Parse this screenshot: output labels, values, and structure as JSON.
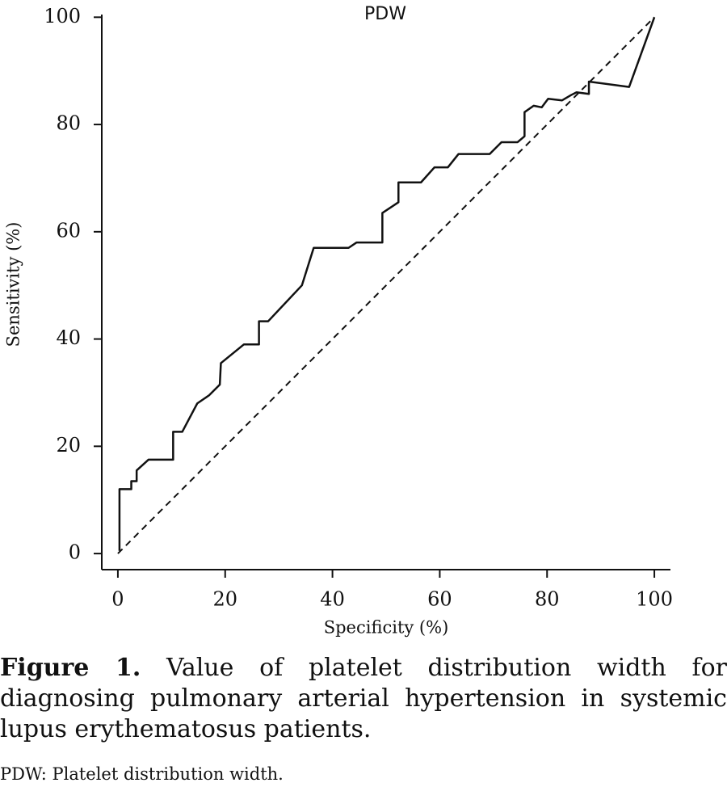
{
  "chart_data": {
    "type": "line",
    "title": "PDW",
    "x_label": "Specificity (%)",
    "y_label": "Sensitivity (%)",
    "x": [
      0.3,
      0.3,
      2.5,
      2.5,
      3.5,
      3.5,
      5.7,
      10.3,
      10.3,
      12,
      14.8,
      17,
      19,
      19.2,
      23.5,
      26.3,
      26.3,
      28,
      34.3,
      36.5,
      43,
      44.5,
      49.3,
      49.3,
      52.3,
      52.3,
      56.5,
      59,
      61.5,
      63.5,
      69.3,
      71.5,
      74.5,
      75.8,
      75.8,
      77.5,
      79,
      80.2,
      82.8,
      84.5,
      85.5,
      87.8,
      87.8,
      95.3,
      100
    ],
    "values": [
      0.5,
      12,
      12,
      13.5,
      13.5,
      15.5,
      17.5,
      17.5,
      22.7,
      22.7,
      28,
      29.5,
      31.5,
      35.5,
      39,
      39,
      43.3,
      43.3,
      50,
      57,
      57,
      58,
      58,
      63.5,
      65.5,
      69.2,
      69.2,
      72,
      72,
      74.5,
      74.5,
      76.7,
      76.7,
      77.8,
      82.3,
      83.5,
      83.2,
      84.8,
      84.5,
      85.5,
      86,
      85.7,
      88,
      87,
      100
    ],
    "color": "#111111",
    "reference": {
      "x": [
        0,
        100
      ],
      "values": [
        0,
        100
      ],
      "style": "dashed"
    },
    "xlim": [
      -3,
      103
    ],
    "ylim": [
      -3,
      100.5
    ],
    "xticks": [
      0,
      20,
      40,
      60,
      80,
      100
    ],
    "yticks": [
      0,
      20,
      40,
      60,
      80,
      100
    ]
  },
  "caption": {
    "label": "Figure 1.",
    "text": "Value of platelet distribution width for diagnosing pulmonary arterial hypertension in systemic lupus erythematosus patients."
  },
  "note": "PDW: Platelet distribution width."
}
